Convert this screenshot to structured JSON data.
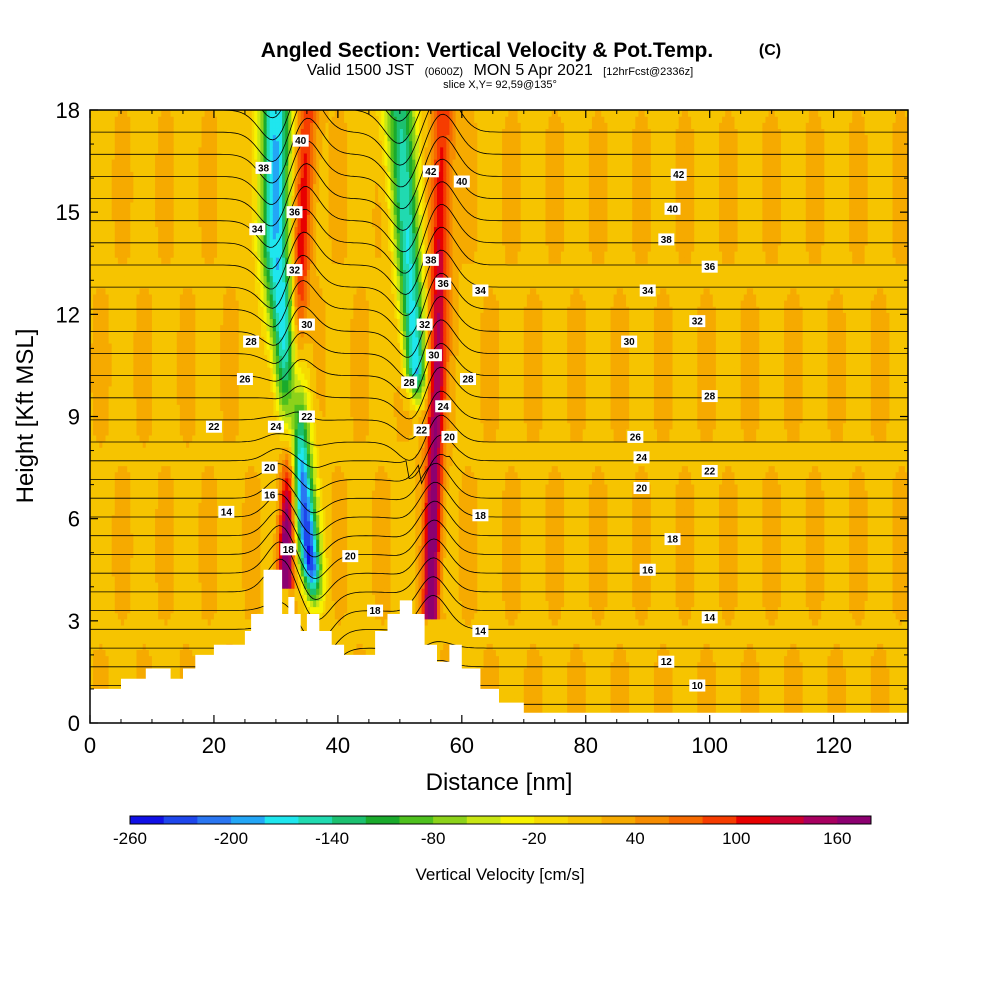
{
  "title": {
    "main": "Angled Section: Vertical Velocity & Pot.Temp.",
    "main_tag": "(C)",
    "sub_a": "Valid 1500 JST",
    "sub_b": "(0600Z)",
    "sub_c": "MON 5 Apr 2021",
    "sub_d": "[12hrFcst@2336z]",
    "slice": "slice X,Y= 92,59@135°"
  },
  "chart_data": {
    "type": "heatmap",
    "xlabel": "Distance [nm]",
    "ylabel": "Height [Kft MSL]",
    "xlim": [
      0,
      132
    ],
    "ylim": [
      0,
      18
    ],
    "x_ticks": [
      0,
      20,
      40,
      60,
      80,
      100,
      120
    ],
    "y_ticks": [
      0,
      3,
      6,
      9,
      12,
      15,
      18
    ],
    "x_tick_labels": [
      "0",
      "20",
      "40",
      "60",
      "80",
      "100",
      "120"
    ],
    "y_tick_labels": [
      "0",
      "3",
      "6",
      "9",
      "12",
      "15",
      "18"
    ],
    "colorbar": {
      "label": "Vertical Velocity [cm/s]",
      "range": [
        -260,
        180
      ],
      "tick_values": [
        -260,
        -200,
        -140,
        -80,
        -20,
        40,
        100,
        160
      ],
      "tick_labels": [
        "-260",
        "-200",
        "-140",
        "-80",
        "-20",
        "40",
        "100",
        "160"
      ],
      "colors": [
        "#1010e6",
        "#1e46ec",
        "#2a76f2",
        "#23a6f6",
        "#1fe6ee",
        "#20dab0",
        "#1cc070",
        "#1aaa2c",
        "#4ec01e",
        "#8cd21a",
        "#c8e614",
        "#f6f200",
        "#f6da00",
        "#f6c400",
        "#f6aa00",
        "#f68c00",
        "#f66a00",
        "#f63c00",
        "#e80000",
        "#cc0030",
        "#a80060",
        "#8c0070"
      ]
    },
    "terrain": [
      [
        0,
        1.0
      ],
      [
        5,
        1.0
      ],
      [
        5,
        1.3
      ],
      [
        9,
        1.3
      ],
      [
        9,
        1.6
      ],
      [
        13,
        1.6
      ],
      [
        13,
        1.3
      ],
      [
        15,
        1.3
      ],
      [
        15,
        1.6
      ],
      [
        17,
        1.6
      ],
      [
        17,
        2.0
      ],
      [
        20,
        2.0
      ],
      [
        20,
        2.3
      ],
      [
        25,
        2.3
      ],
      [
        25,
        2.7
      ],
      [
        26,
        2.7
      ],
      [
        26,
        3.2
      ],
      [
        28,
        3.2
      ],
      [
        28,
        4.5
      ],
      [
        31,
        4.5
      ],
      [
        31,
        3.2
      ],
      [
        32,
        3.2
      ],
      [
        32,
        3.7
      ],
      [
        33,
        3.7
      ],
      [
        33,
        3.2
      ],
      [
        34,
        3.2
      ],
      [
        34,
        2.7
      ],
      [
        35,
        2.7
      ],
      [
        35,
        3.2
      ],
      [
        37,
        3.2
      ],
      [
        37,
        2.7
      ],
      [
        39,
        2.7
      ],
      [
        39,
        2.3
      ],
      [
        41,
        2.3
      ],
      [
        41,
        2.0
      ],
      [
        46,
        2.0
      ],
      [
        46,
        2.7
      ],
      [
        48,
        2.7
      ],
      [
        48,
        3.2
      ],
      [
        50,
        3.2
      ],
      [
        50,
        3.6
      ],
      [
        52,
        3.6
      ],
      [
        52,
        3.2
      ],
      [
        54,
        3.2
      ],
      [
        54,
        2.3
      ],
      [
        56,
        2.3
      ],
      [
        56,
        1.8
      ],
      [
        58,
        1.8
      ],
      [
        58,
        2.3
      ],
      [
        60,
        2.3
      ],
      [
        60,
        1.6
      ],
      [
        63,
        1.6
      ],
      [
        63,
        1.0
      ],
      [
        66,
        1.0
      ],
      [
        66,
        0.6
      ],
      [
        70,
        0.6
      ],
      [
        70,
        0.3
      ],
      [
        132,
        0.3
      ],
      [
        132,
        0
      ]
    ],
    "wave_features": [
      {
        "type": "updraft",
        "x_bottom": 31.5,
        "y_bottom": 4.5,
        "x_top": 35,
        "y_top": 18,
        "w_max": 180
      },
      {
        "type": "downdraft",
        "x_bottom": 36.5,
        "y_bottom": 3.0,
        "x_top": 30,
        "y_top": 14,
        "w_min": -260
      },
      {
        "type": "updraft",
        "x_bottom": 55,
        "y_bottom": 3.5,
        "x_top": 57,
        "y_top": 18,
        "w_max": 180
      },
      {
        "type": "downdraft",
        "x_bottom": 53,
        "y_bottom": 9,
        "x_top": 50,
        "y_top": 18,
        "w_min": -200
      }
    ],
    "contour_labels": [
      {
        "text": "40",
        "x": 34,
        "y": 17.1
      },
      {
        "text": "38",
        "x": 28,
        "y": 16.3
      },
      {
        "text": "36",
        "x": 33,
        "y": 15.0
      },
      {
        "text": "34",
        "x": 27,
        "y": 14.5
      },
      {
        "text": "32",
        "x": 33,
        "y": 13.3
      },
      {
        "text": "30",
        "x": 35,
        "y": 11.7
      },
      {
        "text": "28",
        "x": 26,
        "y": 11.2
      },
      {
        "text": "26",
        "x": 25,
        "y": 10.1
      },
      {
        "text": "22",
        "x": 20,
        "y": 8.7
      },
      {
        "text": "24",
        "x": 30,
        "y": 8.7
      },
      {
        "text": "22",
        "x": 35,
        "y": 9.0
      },
      {
        "text": "20",
        "x": 29,
        "y": 7.5
      },
      {
        "text": "16",
        "x": 29,
        "y": 6.7
      },
      {
        "text": "14",
        "x": 22,
        "y": 6.2
      },
      {
        "text": "18",
        "x": 32,
        "y": 5.1
      },
      {
        "text": "20",
        "x": 42,
        "y": 4.9
      },
      {
        "text": "18",
        "x": 46,
        "y": 3.3
      },
      {
        "text": "42",
        "x": 55,
        "y": 16.2
      },
      {
        "text": "40",
        "x": 60,
        "y": 15.9
      },
      {
        "text": "38",
        "x": 55,
        "y": 13.6
      },
      {
        "text": "36",
        "x": 57,
        "y": 12.9
      },
      {
        "text": "34",
        "x": 63,
        "y": 12.7
      },
      {
        "text": "32",
        "x": 54,
        "y": 11.7
      },
      {
        "text": "30",
        "x": 55.5,
        "y": 10.8
      },
      {
        "text": "28",
        "x": 51.5,
        "y": 10.0
      },
      {
        "text": "28",
        "x": 61,
        "y": 10.1
      },
      {
        "text": "24",
        "x": 57,
        "y": 9.3
      },
      {
        "text": "22",
        "x": 53.5,
        "y": 8.6
      },
      {
        "text": "20",
        "x": 58,
        "y": 8.4
      },
      {
        "text": "18",
        "x": 63,
        "y": 6.1
      },
      {
        "text": "14",
        "x": 63,
        "y": 2.7
      },
      {
        "text": "42",
        "x": 95,
        "y": 16.1
      },
      {
        "text": "40",
        "x": 94,
        "y": 15.1
      },
      {
        "text": "38",
        "x": 93,
        "y": 14.2
      },
      {
        "text": "36",
        "x": 100,
        "y": 13.4
      },
      {
        "text": "34",
        "x": 90,
        "y": 12.7
      },
      {
        "text": "32",
        "x": 98,
        "y": 11.8
      },
      {
        "text": "30",
        "x": 87,
        "y": 11.2
      },
      {
        "text": "28",
        "x": 100,
        "y": 9.6
      },
      {
        "text": "26",
        "x": 88,
        "y": 8.4
      },
      {
        "text": "24",
        "x": 89,
        "y": 7.8
      },
      {
        "text": "22",
        "x": 100,
        "y": 7.4
      },
      {
        "text": "20",
        "x": 89,
        "y": 6.9
      },
      {
        "text": "18",
        "x": 94,
        "y": 5.4
      },
      {
        "text": "16",
        "x": 90,
        "y": 4.5
      },
      {
        "text": "14",
        "x": 100,
        "y": 3.1
      },
      {
        "text": "12",
        "x": 93,
        "y": 1.8
      },
      {
        "text": "10",
        "x": 98,
        "y": 1.1
      }
    ],
    "contour_levels": [
      10,
      11,
      12,
      13,
      14,
      15,
      16,
      17,
      18,
      19,
      20,
      21,
      22,
      23,
      24,
      25,
      26,
      27,
      28,
      29,
      30,
      31,
      32,
      33,
      34,
      35,
      36,
      37,
      38,
      39,
      40,
      41,
      42,
      43
    ]
  }
}
